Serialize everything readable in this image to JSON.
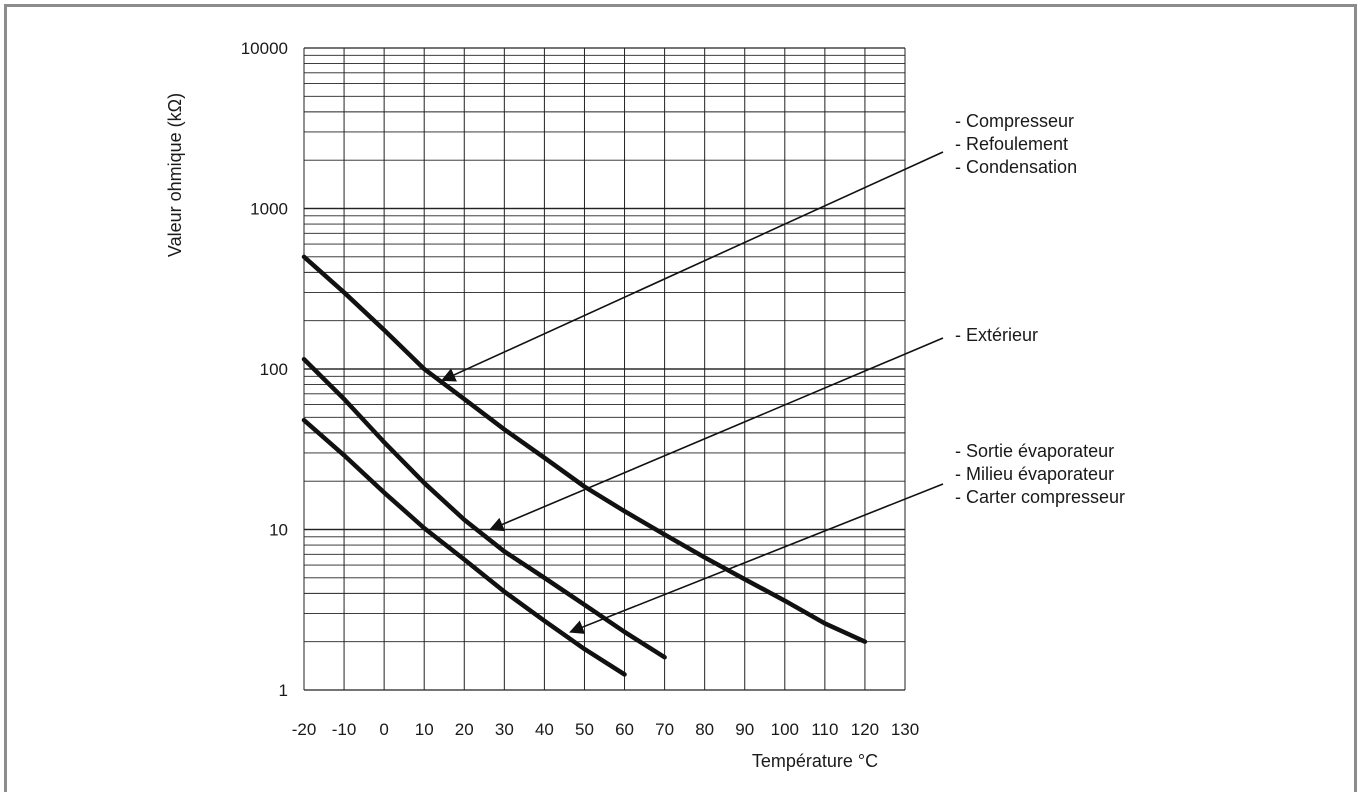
{
  "chart_data": {
    "type": "line",
    "xlabel": "Température  °C",
    "ylabel": "Valeur ohmique  (kΩ)",
    "xscale": "linear",
    "yscale": "log",
    "xlim": [
      -20,
      130
    ],
    "ylim": [
      1,
      10000
    ],
    "grid": true,
    "x_ticks": [
      "-20",
      "-10",
      "0",
      "10",
      "20",
      "30",
      "40",
      "50",
      "60",
      "70",
      "80",
      "90",
      "100",
      "110",
      "120",
      "130"
    ],
    "y_ticks": [
      "1",
      "10",
      "100",
      "1000",
      "10000"
    ],
    "series": [
      {
        "x": [
          -20,
          -10,
          0,
          10,
          20,
          30,
          40,
          50,
          60,
          70,
          80,
          90,
          100,
          110,
          120
        ],
        "y": [
          500,
          300,
          175,
          100,
          65,
          42,
          28,
          18.5,
          13,
          9.3,
          6.7,
          4.9,
          3.6,
          2.6,
          2.0
        ]
      },
      {
        "x": [
          -20,
          -10,
          0,
          10,
          20,
          30,
          40,
          50,
          60,
          70
        ],
        "y": [
          115,
          65,
          35,
          19.5,
          11.5,
          7.3,
          5.0,
          3.4,
          2.3,
          1.6
        ]
      },
      {
        "x": [
          -20,
          -10,
          0,
          10,
          20,
          30,
          40,
          50,
          60
        ],
        "y": [
          48,
          29,
          17,
          10.2,
          6.5,
          4.1,
          2.7,
          1.8,
          1.25
        ]
      }
    ],
    "annotations": [
      {
        "lines": [
          "- Compresseur",
          "- Refoulement",
          "- Condensation"
        ],
        "arrow_to": {
          "x": 14.5,
          "y": 85
        }
      },
      {
        "lines": [
          "- Extérieur"
        ],
        "arrow_to": {
          "x": 26.5,
          "y": 10
        }
      },
      {
        "lines": [
          "- Sortie évaporateur",
          "- Milieu évaporateur",
          "- Carter compresseur"
        ],
        "arrow_to": {
          "x": 46.5,
          "y": 2.3
        }
      }
    ]
  }
}
